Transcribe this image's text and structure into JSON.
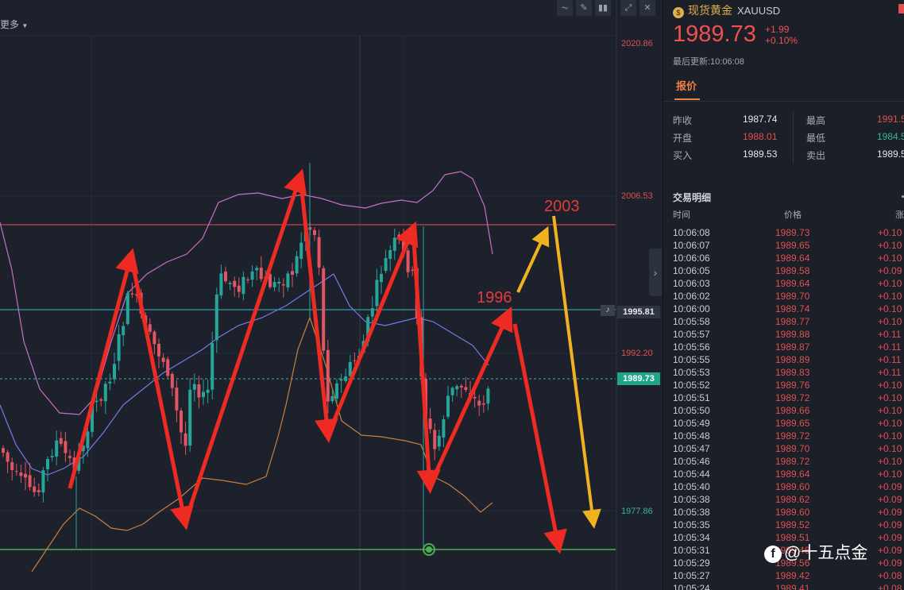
{
  "toolbar": {
    "more_label": "更多"
  },
  "price_axis": {
    "labels": [
      {
        "value": "2020.86",
        "color": "#e05050"
      },
      {
        "value": "2006.53",
        "color": "#e05050"
      },
      {
        "value": "1992.20",
        "color": "#e05050"
      },
      {
        "value": "1977.86",
        "color": "#3bb39a"
      }
    ],
    "tag_1995": "1995.81",
    "tag_current": "1989.73"
  },
  "annotations": {
    "label_2003": "2003",
    "label_1996": "1996"
  },
  "quote": {
    "name": "现货黄金",
    "symbol": "XAUUSD",
    "price": "1989.73",
    "change": "+1.99",
    "change_pct": "+0.10%",
    "updated": "最后更新:10:06:08",
    "tab": "报价",
    "rows": [
      {
        "l1": "昨收",
        "v1": "1987.74",
        "c1": "#e8e8e8",
        "l2": "最高",
        "v2": "1991.5",
        "c2": "#e05050"
      },
      {
        "l1": "开盘",
        "v1": "1988.01",
        "c1": "#e05050",
        "l2": "最低",
        "v2": "1984.5",
        "c2": "#3bb39a"
      },
      {
        "l1": "买入",
        "v1": "1989.53",
        "c1": "#e8e8e8",
        "l2": "卖出",
        "v2": "1989.5",
        "c2": "#e8e8e8"
      }
    ]
  },
  "trades": {
    "title": "交易明细",
    "col_time": "时间",
    "col_price": "价格",
    "col_change": "涨",
    "rows": [
      {
        "time": "10:06:08",
        "price": "1989.73",
        "chg": "+0.10"
      },
      {
        "time": "10:06:07",
        "price": "1989.65",
        "chg": "+0.10"
      },
      {
        "time": "10:06:06",
        "price": "1989.64",
        "chg": "+0.10"
      },
      {
        "time": "10:06:05",
        "price": "1989.58",
        "chg": "+0.09"
      },
      {
        "time": "10:06:03",
        "price": "1989.64",
        "chg": "+0.10"
      },
      {
        "time": "10:06:02",
        "price": "1989.70",
        "chg": "+0.10"
      },
      {
        "time": "10:06:00",
        "price": "1989.74",
        "chg": "+0.10"
      },
      {
        "time": "10:05:58",
        "price": "1989.77",
        "chg": "+0.10"
      },
      {
        "time": "10:05:57",
        "price": "1989.88",
        "chg": "+0.11"
      },
      {
        "time": "10:05:56",
        "price": "1989.87",
        "chg": "+0.11"
      },
      {
        "time": "10:05:55",
        "price": "1989.89",
        "chg": "+0.11"
      },
      {
        "time": "10:05:53",
        "price": "1989.83",
        "chg": "+0.11"
      },
      {
        "time": "10:05:52",
        "price": "1989.76",
        "chg": "+0.10"
      },
      {
        "time": "10:05:51",
        "price": "1989.72",
        "chg": "+0.10"
      },
      {
        "time": "10:05:50",
        "price": "1989.66",
        "chg": "+0.10"
      },
      {
        "time": "10:05:49",
        "price": "1989.65",
        "chg": "+0.10"
      },
      {
        "time": "10:05:48",
        "price": "1989.72",
        "chg": "+0.10"
      },
      {
        "time": "10:05:47",
        "price": "1989.70",
        "chg": "+0.10"
      },
      {
        "time": "10:05:46",
        "price": "1989.72",
        "chg": "+0.10"
      },
      {
        "time": "10:05:44",
        "price": "1989.64",
        "chg": "+0.10"
      },
      {
        "time": "10:05:40",
        "price": "1989.60",
        "chg": "+0.09"
      },
      {
        "time": "10:05:38",
        "price": "1989.62",
        "chg": "+0.09"
      },
      {
        "time": "10:05:38",
        "price": "1989.60",
        "chg": "+0.09"
      },
      {
        "time": "10:05:35",
        "price": "1989.52",
        "chg": "+0.09"
      },
      {
        "time": "10:05:34",
        "price": "1989.51",
        "chg": "+0.09"
      },
      {
        "time": "10:05:31",
        "price": "1989.46",
        "chg": "+0.09"
      },
      {
        "time": "10:05:29",
        "price": "1989.56",
        "chg": "+0.09"
      },
      {
        "time": "10:05:27",
        "price": "1989.42",
        "chg": "+0.08"
      },
      {
        "time": "10:05:24",
        "price": "1989.41",
        "chg": "+0.08"
      }
    ]
  },
  "watermark": {
    "text": "@十五点金"
  }
}
